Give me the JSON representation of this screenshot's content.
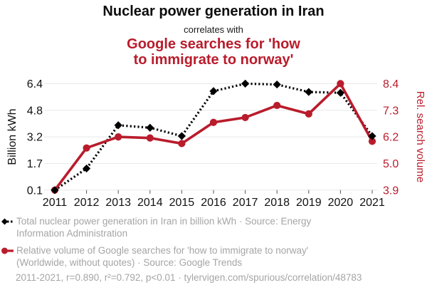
{
  "header": {
    "title": "Nuclear power generation in Iran",
    "connector": "correlates with",
    "subtitle_line1": "Google searches for 'how",
    "subtitle_line2": "to immigrate to norway'"
  },
  "colors": {
    "accent_red": "#b91c2c",
    "series_black": "#000000",
    "grid_line": "#e8e8e8",
    "legend_text": "#a5a5a5",
    "axis_text": "#111111"
  },
  "chart_data": {
    "type": "line",
    "x": [
      "2011",
      "2012",
      "2013",
      "2014",
      "2015",
      "2016",
      "2017",
      "2018",
      "2019",
      "2020",
      "2021"
    ],
    "series": [
      {
        "name": "Total nuclear power generation in Iran in billion kWh",
        "axis": "left",
        "color": "#000000",
        "line_style": "dotted",
        "marker": "diamond",
        "values": [
          0.1,
          1.4,
          3.9,
          3.75,
          3.25,
          5.95,
          6.4,
          6.35,
          5.9,
          5.85,
          3.25
        ]
      },
      {
        "name": "Relative volume of Google searches for 'how to immigrate to norway'",
        "axis": "right",
        "color": "#b91c2c",
        "line_style": "solid",
        "marker": "circle",
        "values": [
          3.9,
          5.7,
          6.2,
          6.15,
          5.9,
          6.8,
          7.0,
          7.5,
          7.15,
          8.4,
          6.0
        ]
      }
    ],
    "left_axis": {
      "label": "Billion kWh",
      "ticks": [
        "0.1",
        "1.7",
        "3.2",
        "4.8",
        "6.4"
      ]
    },
    "right_axis": {
      "label": "Rel. search volume",
      "ticks": [
        "3.9",
        "5.0",
        "6.2",
        "7.3",
        "8.4"
      ]
    },
    "grid": "horizontal",
    "legend_position": "bottom"
  },
  "legend": {
    "series1": {
      "line1": "Total nuclear power generation in Iran in billion kWh · Source: Energy",
      "line2": "Information Administration"
    },
    "series2": {
      "line1": "Relative volume of Google searches for 'how to immigrate to norway'",
      "line2": "(Worldwide, without quotes) · Source: Google Trends"
    },
    "stats": "2011-2021, r=0.890, r²=0.792, p<0.01 · tylervigen.com/spurious/correlation/48783"
  }
}
